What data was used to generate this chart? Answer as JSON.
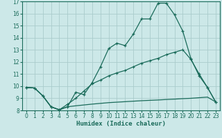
{
  "title": "",
  "xlabel": "Humidex (Indice chaleur)",
  "bg_color": "#cce8e8",
  "grid_color": "#aacccc",
  "line_color": "#1a6b5a",
  "xlim": [
    -0.5,
    23.5
  ],
  "ylim": [
    8,
    17
  ],
  "yticks": [
    8,
    9,
    10,
    11,
    12,
    13,
    14,
    15,
    16,
    17
  ],
  "xticks": [
    0,
    1,
    2,
    3,
    4,
    5,
    6,
    7,
    8,
    9,
    10,
    11,
    12,
    13,
    14,
    15,
    16,
    17,
    18,
    19,
    20,
    21,
    22,
    23
  ],
  "line1_x": [
    0,
    1,
    2,
    3,
    4,
    5,
    6,
    7,
    8,
    9,
    10,
    11,
    12,
    13,
    14,
    15,
    16,
    17,
    18,
    19,
    20,
    21,
    22,
    23
  ],
  "line1_y": [
    9.9,
    9.85,
    9.2,
    8.3,
    8.05,
    8.3,
    9.5,
    9.3,
    10.3,
    11.6,
    13.1,
    13.55,
    13.35,
    14.3,
    15.55,
    15.55,
    16.85,
    16.85,
    15.9,
    14.55,
    12.25,
    10.85,
    9.9,
    8.7
  ],
  "line2_x": [
    0,
    1,
    2,
    3,
    4,
    5,
    6,
    7,
    8,
    9,
    10,
    11,
    12,
    13,
    14,
    15,
    16,
    17,
    18,
    19,
    20,
    21,
    22,
    23
  ],
  "line2_y": [
    9.9,
    9.85,
    9.2,
    8.3,
    8.05,
    8.5,
    9.0,
    9.6,
    10.2,
    10.5,
    10.85,
    11.1,
    11.3,
    11.6,
    11.9,
    12.1,
    12.3,
    12.6,
    12.8,
    13.0,
    12.2,
    11.0,
    9.9,
    8.7
  ],
  "line3_x": [
    0,
    1,
    2,
    3,
    4,
    5,
    6,
    7,
    8,
    9,
    10,
    11,
    12,
    13,
    14,
    15,
    16,
    17,
    18,
    19,
    20,
    21,
    22,
    23
  ],
  "line3_y": [
    9.9,
    9.85,
    9.2,
    8.3,
    8.05,
    8.3,
    8.38,
    8.45,
    8.52,
    8.58,
    8.64,
    8.68,
    8.72,
    8.76,
    8.8,
    8.83,
    8.86,
    8.9,
    8.93,
    8.97,
    9.0,
    9.05,
    9.1,
    8.7
  ]
}
